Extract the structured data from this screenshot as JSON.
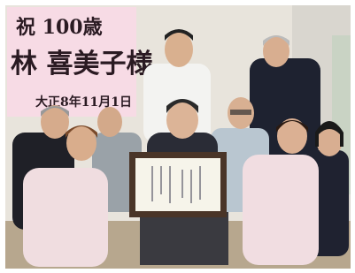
{
  "banner": {
    "line1": "祝 100歳",
    "line2": "林 喜美子様",
    "line3": "大正8年11月1日"
  }
}
